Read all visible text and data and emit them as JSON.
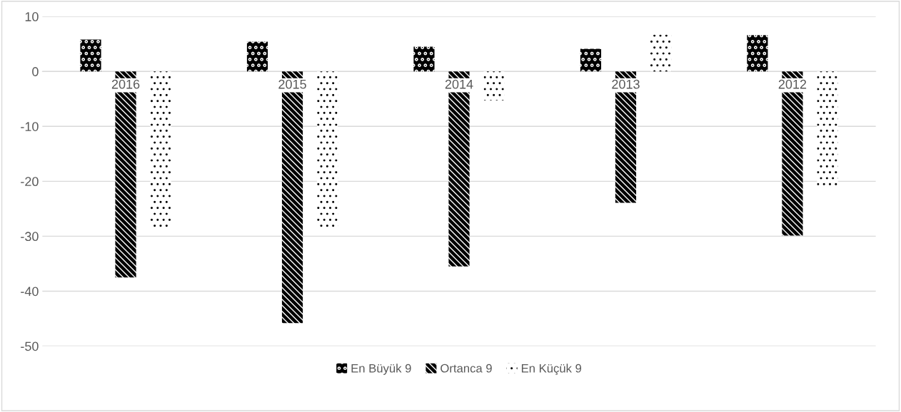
{
  "chart_data": {
    "type": "bar",
    "categories": [
      "2016",
      "2015",
      "2014",
      "2013",
      "2012"
    ],
    "series": [
      {
        "name": "En Büyük 9",
        "color": "#000000",
        "values": [
          5.8,
          5.4,
          4.5,
          4.1,
          6.6
        ]
      },
      {
        "name": "Ortanca 9",
        "color": "#000000",
        "values": [
          -37.5,
          -45.8,
          -35.5,
          -23.9,
          -29.9
        ]
      },
      {
        "name": "En Küçük 9",
        "color": "#ffffff",
        "values": [
          -28.4,
          -28.8,
          -5.3,
          6.7,
          -21.1
        ]
      }
    ],
    "ylim": [
      -50,
      10
    ],
    "yticks": [
      10,
      0,
      -10,
      -20,
      -30,
      -40,
      -50
    ],
    "grid": "y",
    "legend": "bottom"
  }
}
